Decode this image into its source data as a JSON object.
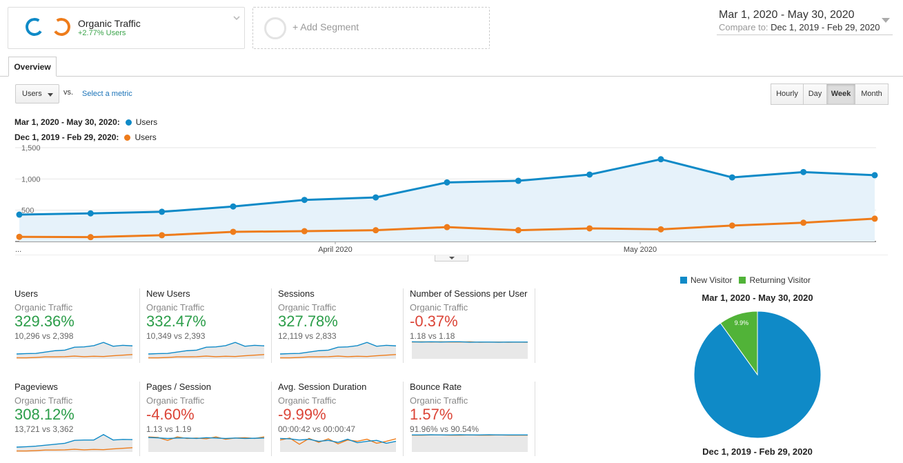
{
  "segment": {
    "title": "Organic Traffic",
    "subtitle": "+2.77% Users",
    "add_label": "+ Add Segment"
  },
  "date_range": {
    "main": "Mar 1, 2020 - May 30, 2020",
    "compare_label": "Compare to:",
    "compare_range": "Dec 1, 2019 - Feb 29, 2020"
  },
  "tabs": [
    {
      "label": "Overview"
    }
  ],
  "metric_selector": {
    "selected": "Users",
    "vs": "vs.",
    "select_metric": "Select a metric"
  },
  "granularity": [
    "Hourly",
    "Day",
    "Week",
    "Month"
  ],
  "granularity_active": "Week",
  "legend": {
    "current": {
      "range": "Mar 1, 2020 - May 30, 2020:",
      "metric": "Users"
    },
    "previous": {
      "range": "Dec 1, 2019 - Feb 29, 2020:",
      "metric": "Users"
    }
  },
  "colors": {
    "current": "#0f8ac7",
    "previous": "#ee7c1b",
    "positive": "#2b9d49",
    "negative": "#db4437",
    "returning": "#51b338",
    "area": "#e6f2fa"
  },
  "chart_data": [
    {
      "type": "line",
      "yticks": [
        "1,500",
        "1,000",
        "500"
      ],
      "ylim": [
        0,
        1500
      ],
      "xticks": [
        "...",
        "April 2020",
        "May 2020"
      ],
      "series": [
        {
          "name": "Users",
          "period": "current",
          "values": [
            430,
            450,
            475,
            560,
            665,
            705,
            945,
            970,
            1070,
            1315,
            1025,
            1110,
            1060
          ]
        },
        {
          "name": "Users",
          "period": "previous",
          "values": [
            75,
            70,
            100,
            155,
            165,
            180,
            230,
            180,
            210,
            195,
            255,
            300,
            365
          ]
        }
      ]
    },
    {
      "type": "pie",
      "legend": [
        "New Visitor",
        "Returning Visitor"
      ],
      "title_top": "Mar 1, 2020 - May 30, 2020",
      "title_bottom": "Dec 1, 2019 - Feb 29, 2020",
      "slices": [
        {
          "label": "New Visitor",
          "value": 90.1,
          "text": "90.1%"
        },
        {
          "label": "Returning Visitor",
          "value": 9.9,
          "text": "9.9%"
        }
      ]
    }
  ],
  "scorecards": [
    {
      "name": "Users",
      "segment": "Organic Traffic",
      "pct": "329.36%",
      "trend": "positive",
      "comparison": "10,296 vs 2,398",
      "spark_current": [
        0.25,
        0.27,
        0.28,
        0.35,
        0.42,
        0.45,
        0.6,
        0.62,
        0.68,
        0.85,
        0.65,
        0.7,
        0.67
      ],
      "spark_previous": [
        0.05,
        0.05,
        0.07,
        0.1,
        0.1,
        0.11,
        0.14,
        0.11,
        0.13,
        0.12,
        0.16,
        0.19,
        0.22
      ]
    },
    {
      "name": "New Users",
      "segment": "Organic Traffic",
      "pct": "332.47%",
      "trend": "positive",
      "comparison": "10,349 vs 2,393",
      "spark_current": [
        0.25,
        0.27,
        0.28,
        0.35,
        0.42,
        0.45,
        0.6,
        0.62,
        0.68,
        0.85,
        0.65,
        0.7,
        0.67
      ],
      "spark_previous": [
        0.05,
        0.05,
        0.07,
        0.1,
        0.1,
        0.11,
        0.14,
        0.11,
        0.13,
        0.12,
        0.16,
        0.19,
        0.22
      ]
    },
    {
      "name": "Sessions",
      "segment": "Organic Traffic",
      "pct": "327.78%",
      "trend": "positive",
      "comparison": "12,119 vs 2,833",
      "spark_current": [
        0.25,
        0.27,
        0.28,
        0.35,
        0.42,
        0.45,
        0.6,
        0.62,
        0.68,
        0.85,
        0.65,
        0.7,
        0.67
      ],
      "spark_previous": [
        0.05,
        0.05,
        0.07,
        0.1,
        0.1,
        0.11,
        0.14,
        0.11,
        0.13,
        0.12,
        0.16,
        0.19,
        0.22
      ]
    },
    {
      "name": "Number of Sessions per User",
      "segment": "Organic Traffic",
      "pct": "-0.37%",
      "trend": "negative",
      "comparison": "1.18 vs 1.18",
      "spark_current": [
        0.88,
        0.87,
        0.88,
        0.87,
        0.88,
        0.88,
        0.86,
        0.87,
        0.87,
        0.86,
        0.87,
        0.87,
        0.87
      ],
      "spark_previous": [
        0.87,
        0.88,
        0.87,
        0.88,
        0.87,
        0.87,
        0.88,
        0.86,
        0.87,
        0.87,
        0.86,
        0.87,
        0.86
      ]
    },
    {
      "name": "Pageviews",
      "segment": "Organic Traffic",
      "pct": "308.12%",
      "trend": "positive",
      "comparison": "13,721 vs 3,362",
      "spark_current": [
        0.25,
        0.27,
        0.3,
        0.35,
        0.4,
        0.45,
        0.6,
        0.62,
        0.62,
        0.9,
        0.62,
        0.65,
        0.64
      ],
      "spark_previous": [
        0.05,
        0.05,
        0.07,
        0.1,
        0.1,
        0.11,
        0.14,
        0.11,
        0.13,
        0.12,
        0.16,
        0.19,
        0.22
      ]
    },
    {
      "name": "Pages / Session",
      "segment": "Organic Traffic",
      "pct": "-4.60%",
      "trend": "negative",
      "comparison": "1.13 vs 1.19",
      "spark_current": [
        0.75,
        0.73,
        0.7,
        0.72,
        0.72,
        0.7,
        0.74,
        0.72,
        0.7,
        0.72,
        0.7,
        0.71,
        0.72
      ],
      "spark_previous": [
        0.78,
        0.75,
        0.6,
        0.78,
        0.7,
        0.72,
        0.68,
        0.78,
        0.66,
        0.72,
        0.74,
        0.7,
        0.78
      ]
    },
    {
      "name": "Avg. Session Duration",
      "segment": "Organic Traffic",
      "pct": "-9.99%",
      "trend": "negative",
      "comparison": "00:00:42 vs 00:00:47",
      "spark_current": [
        0.7,
        0.68,
        0.62,
        0.66,
        0.55,
        0.6,
        0.5,
        0.66,
        0.48,
        0.55,
        0.6,
        0.45,
        0.55
      ],
      "spark_previous": [
        0.62,
        0.72,
        0.4,
        0.7,
        0.5,
        0.68,
        0.42,
        0.62,
        0.55,
        0.66,
        0.45,
        0.55,
        0.68
      ]
    },
    {
      "name": "Bounce Rate",
      "segment": "Organic Traffic",
      "pct": "1.57%",
      "trend": "negative",
      "comparison": "91.96% vs 90.54%",
      "spark_current": [
        0.88,
        0.88,
        0.89,
        0.88,
        0.88,
        0.89,
        0.88,
        0.88,
        0.89,
        0.88,
        0.88,
        0.88,
        0.88
      ],
      "spark_previous": [
        0.87,
        0.87,
        0.88,
        0.88,
        0.87,
        0.87,
        0.88,
        0.87,
        0.87,
        0.88,
        0.87,
        0.87,
        0.87
      ]
    }
  ]
}
